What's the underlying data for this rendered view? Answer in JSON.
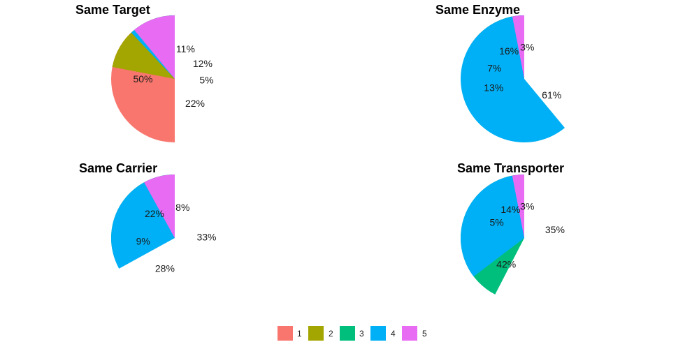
{
  "chart_data": [
    {
      "type": "pie",
      "title": "Same Target",
      "categories": [
        "1",
        "2",
        "3",
        "4",
        "5"
      ],
      "values": [
        50,
        22,
        5,
        12,
        11
      ],
      "labels": [
        "50%",
        "22%",
        "5%",
        "12%",
        "11%"
      ]
    },
    {
      "type": "pie",
      "title": "Same Enzyme",
      "categories": [
        "1",
        "2",
        "3",
        "4",
        "5"
      ],
      "values": [
        16,
        7,
        13,
        61,
        3
      ],
      "labels": [
        "16%",
        "7%",
        "13%",
        "61%",
        "3%"
      ]
    },
    {
      "type": "pie",
      "title": "Same Carrier",
      "categories": [
        "1",
        "2",
        "3",
        "4",
        "5"
      ],
      "values": [
        22,
        9,
        28,
        33,
        8
      ],
      "labels": [
        "22%",
        "9%",
        "28%",
        "33%",
        "8%"
      ]
    },
    {
      "type": "pie",
      "title": "Same Transporter",
      "categories": [
        "1",
        "2",
        "3",
        "4",
        "5"
      ],
      "values": [
        14,
        5,
        42,
        35,
        3
      ],
      "labels": [
        "14%",
        "5%",
        "42%",
        "35%",
        "3%"
      ]
    }
  ],
  "legend": {
    "placement": "bottom",
    "items": [
      {
        "label": "1",
        "color": "#F8766D"
      },
      {
        "label": "2",
        "color": "#A3A500"
      },
      {
        "label": "3",
        "color": "#00BF7D"
      },
      {
        "label": "4",
        "color": "#00B0F6"
      },
      {
        "label": "5",
        "color": "#E76BF3"
      }
    ]
  },
  "colors": {
    "1": "#F8766D",
    "2": "#A3A500",
    "3": "#00BF7D",
    "4": "#00B0F6",
    "5": "#E76BF3"
  }
}
